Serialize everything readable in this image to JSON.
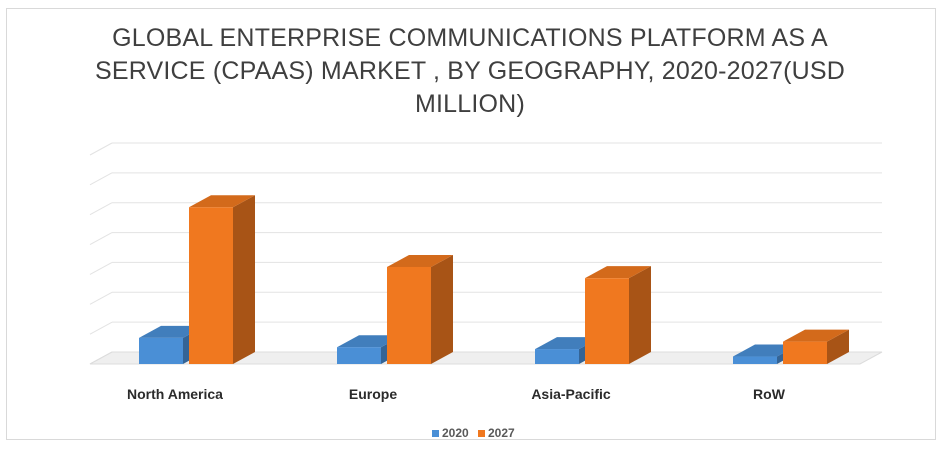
{
  "chart_data": {
    "type": "bar",
    "title_lines": [
      "GLOBAL ENTERPRISE COMMUNICATIONS PLATFORM AS A",
      "SERVICE (CPAAS) MARKET , BY GEOGRAPHY, 2020-2027(USD",
      "MILLION)"
    ],
    "categories": [
      "North America",
      "Europe",
      "Asia-Pacific",
      "RoW"
    ],
    "series": [
      {
        "name": "2020",
        "color": "#4a8fd6",
        "values": [
          7,
          4.5,
          4,
          2
        ]
      },
      {
        "name": "2027",
        "color": "#f0781f",
        "values": [
          42,
          26,
          23,
          6
        ]
      }
    ],
    "ylim": [
      0,
      56
    ],
    "grid": true,
    "legend": "bottom-center",
    "three_d": true
  }
}
